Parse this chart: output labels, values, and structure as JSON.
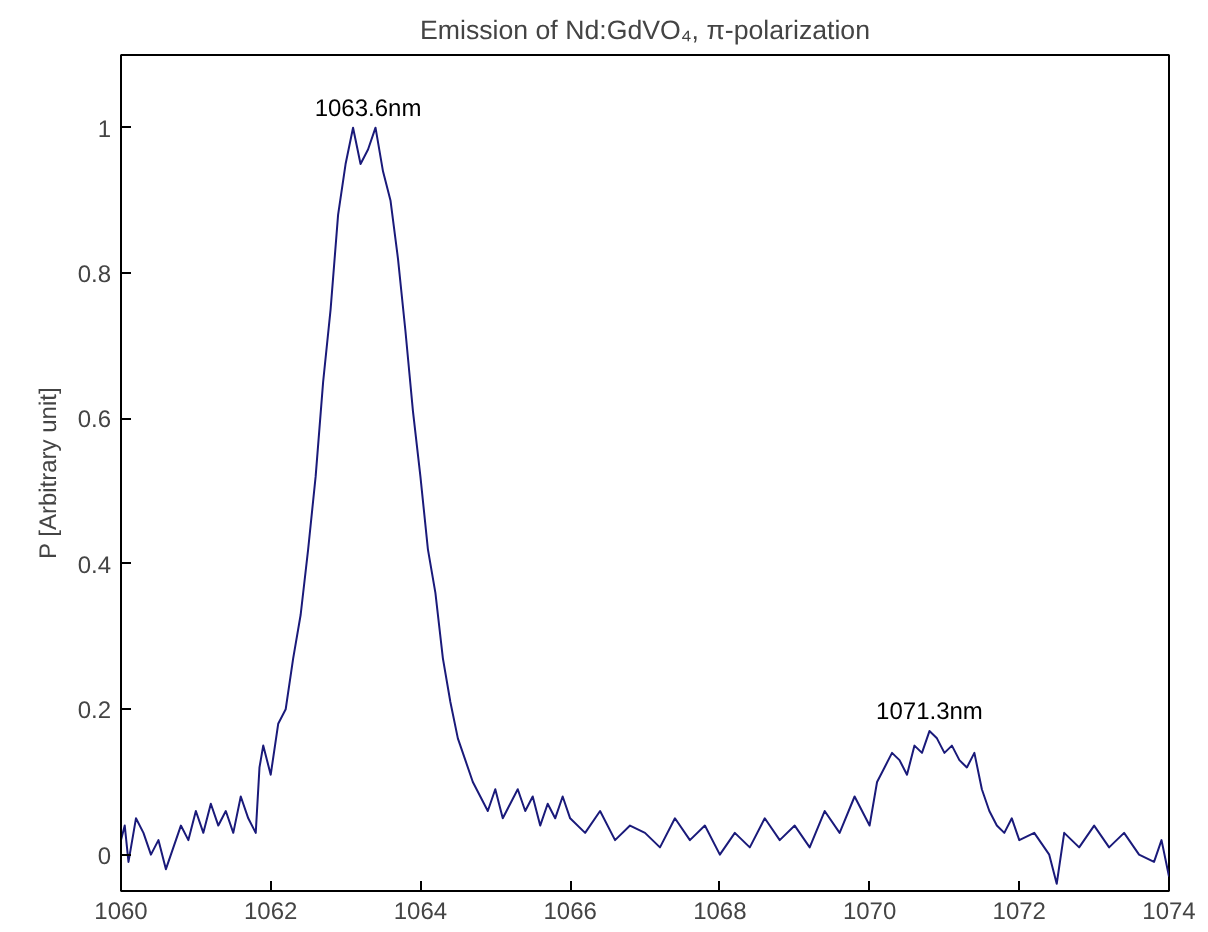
{
  "chart_data": {
    "type": "line",
    "title": "Emission of Nd:GdVO₄, π-polarization",
    "ylabel": "P [Arbitrary unit]",
    "xlim": [
      1060,
      1074
    ],
    "ylim": [
      -0.05,
      1.1
    ],
    "xticks": [
      1060,
      1062,
      1064,
      1066,
      1068,
      1070,
      1072,
      1074
    ],
    "yticks": [
      0,
      0.2,
      0.4,
      0.6,
      0.8,
      1
    ],
    "marker": "none",
    "line_style": "solid",
    "series": [
      {
        "color": "#1a1a7a",
        "x": [
          1060.0,
          1060.05,
          1060.1,
          1060.2,
          1060.3,
          1060.4,
          1060.5,
          1060.6,
          1060.7,
          1060.8,
          1060.9,
          1061.0,
          1061.1,
          1061.2,
          1061.3,
          1061.4,
          1061.5,
          1061.6,
          1061.7,
          1061.8,
          1061.85,
          1061.9,
          1062.0,
          1062.1,
          1062.2,
          1062.3,
          1062.4,
          1062.5,
          1062.6,
          1062.7,
          1062.8,
          1062.9,
          1063.0,
          1063.1,
          1063.2,
          1063.3,
          1063.4,
          1063.5,
          1063.6,
          1063.7,
          1063.8,
          1063.9,
          1064.0,
          1064.1,
          1064.2,
          1064.3,
          1064.4,
          1064.5,
          1064.6,
          1064.7,
          1064.8,
          1064.9,
          1065.0,
          1065.1,
          1065.2,
          1065.3,
          1065.4,
          1065.5,
          1065.6,
          1065.7,
          1065.8,
          1065.9,
          1066.0,
          1066.2,
          1066.4,
          1066.6,
          1066.8,
          1067.0,
          1067.2,
          1067.4,
          1067.6,
          1067.8,
          1068.0,
          1068.2,
          1068.4,
          1068.6,
          1068.8,
          1069.0,
          1069.2,
          1069.4,
          1069.6,
          1069.8,
          1070.0,
          1070.1,
          1070.2,
          1070.3,
          1070.4,
          1070.5,
          1070.6,
          1070.7,
          1070.8,
          1070.9,
          1071.0,
          1071.1,
          1071.2,
          1071.3,
          1071.4,
          1071.5,
          1071.6,
          1071.7,
          1071.8,
          1071.9,
          1072.0,
          1072.2,
          1072.4,
          1072.5,
          1072.6,
          1072.8,
          1073.0,
          1073.2,
          1073.4,
          1073.6,
          1073.8,
          1073.9,
          1074.0
        ],
        "values": [
          0.02,
          0.04,
          -0.01,
          0.05,
          0.03,
          0.0,
          0.02,
          -0.02,
          0.01,
          0.04,
          0.02,
          0.06,
          0.03,
          0.07,
          0.04,
          0.06,
          0.03,
          0.08,
          0.05,
          0.03,
          0.12,
          0.15,
          0.11,
          0.18,
          0.2,
          0.27,
          0.33,
          0.42,
          0.52,
          0.65,
          0.75,
          0.88,
          0.95,
          1.0,
          0.95,
          0.97,
          1.0,
          0.94,
          0.9,
          0.82,
          0.72,
          0.61,
          0.52,
          0.42,
          0.36,
          0.27,
          0.21,
          0.16,
          0.13,
          0.1,
          0.08,
          0.06,
          0.09,
          0.05,
          0.07,
          0.09,
          0.06,
          0.08,
          0.04,
          0.07,
          0.05,
          0.08,
          0.05,
          0.03,
          0.06,
          0.02,
          0.04,
          0.03,
          0.01,
          0.05,
          0.02,
          0.04,
          0.0,
          0.03,
          0.01,
          0.05,
          0.02,
          0.04,
          0.01,
          0.06,
          0.03,
          0.08,
          0.04,
          0.1,
          0.12,
          0.14,
          0.13,
          0.11,
          0.15,
          0.14,
          0.17,
          0.16,
          0.14,
          0.15,
          0.13,
          0.12,
          0.14,
          0.09,
          0.06,
          0.04,
          0.03,
          0.05,
          0.02,
          0.03,
          0.0,
          -0.04,
          0.03,
          0.01,
          0.04,
          0.01,
          0.03,
          0.0,
          -0.01,
          0.02,
          -0.03
        ]
      }
    ],
    "annotations": [
      {
        "text": "1063.6nm",
        "x": 1063.3,
        "y": 1.0
      },
      {
        "text": "1071.3nm",
        "x": 1070.8,
        "y": 0.17
      }
    ]
  }
}
